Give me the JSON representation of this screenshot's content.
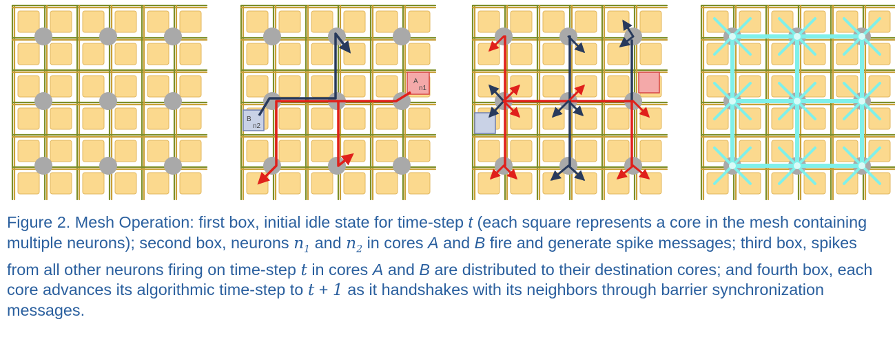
{
  "colors": {
    "core": "#fbd98e",
    "router": "#a9a9a9",
    "wire_green": "#7d8f2a",
    "wire_gold": "#c9a038",
    "spike_red": "#e0201b",
    "spike_navy": "#283a5c",
    "barrier_cyan": "#7ff0ea",
    "caption_text": "#2a5f9e"
  },
  "panels": [
    {
      "id": "first-box",
      "state": "idle"
    },
    {
      "id": "second-box",
      "state": "spike-messages",
      "labels": {
        "a": "A",
        "a_sub": "n1",
        "b": "B",
        "b_sub": "n2"
      }
    },
    {
      "id": "third-box",
      "state": "spike-distribution"
    },
    {
      "id": "fourth-box",
      "state": "barrier-synchronization"
    }
  ],
  "caption": {
    "p1": "Figure 2. Mesh Operation: first box, initial idle state for time-step ",
    "t1": "t",
    "p2": " (each square represents a core in the mesh containing multiple neurons); second box, neurons ",
    "n1": "n",
    "n1_sub": "1",
    "p3": " and ",
    "n2": "n",
    "n2_sub": "2",
    "p4": " in cores ",
    "A1": "A",
    "p5": " and ",
    "B1": "B",
    "p6": " fire and generate spike messages; third box, spikes from all other neurons firing on time-step ",
    "t2": "t",
    "p7": " in cores ",
    "A2": "A",
    "p8": " and ",
    "B2": "B",
    "p9": " are distributed to their destination cores; and fourth box, each core advances its algorithmic time-step to ",
    "t3": "t",
    "p10": " + ",
    "one": "1",
    "p11": " as it handshakes with its neighbors through barrier synchronization messages."
  }
}
